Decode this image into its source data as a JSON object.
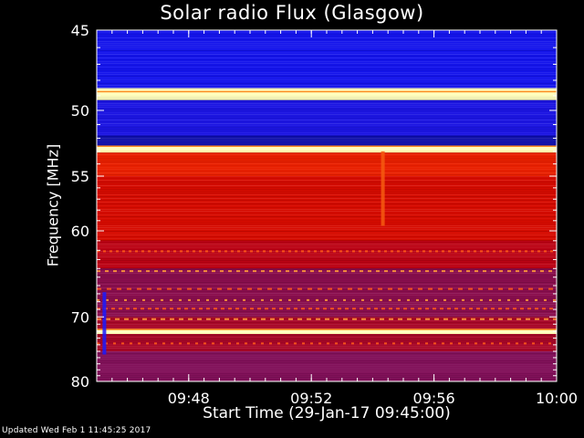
{
  "chart_data": {
    "type": "heatmap",
    "title": "Solar radio Flux (Glasgow)",
    "xlabel": "Start Time (29-Jan-17 09:45:00)",
    "ylabel": "Frequency [MHz]",
    "x_unit": "time (HH:MM)",
    "xlim": [
      "09:45",
      "10:00"
    ],
    "x_ticks": [
      "09:48",
      "09:52",
      "09:56",
      "10:00"
    ],
    "ylim": [
      45,
      80
    ],
    "y_inverted": true,
    "y_ticks": [
      45,
      50,
      55,
      60,
      70,
      80
    ],
    "y_scale": "reciprocal",
    "colormap": "blue-red-yellow",
    "frequency_bands": [
      {
        "from": 45.0,
        "to": 48.5,
        "level": 0.12
      },
      {
        "from": 48.5,
        "to": 49.3,
        "level": 1.0
      },
      {
        "from": 49.3,
        "to": 51.8,
        "level": 0.14
      },
      {
        "from": 51.8,
        "to": 52.6,
        "level": 0.05
      },
      {
        "from": 52.6,
        "to": 53.1,
        "level": 0.98
      },
      {
        "from": 53.1,
        "to": 55.0,
        "level": 0.72
      },
      {
        "from": 55.0,
        "to": 61.0,
        "level": 0.64
      },
      {
        "from": 61.0,
        "to": 64.0,
        "level": 0.55
      },
      {
        "from": 64.0,
        "to": 70.0,
        "level": 0.42
      },
      {
        "from": 70.0,
        "to": 71.8,
        "level": 0.5
      },
      {
        "from": 71.8,
        "to": 72.4,
        "level": 0.97
      },
      {
        "from": 72.4,
        "to": 75.0,
        "level": 0.5
      },
      {
        "from": 75.0,
        "to": 80.0,
        "level": 0.4
      }
    ],
    "bright_lines_mhz": [
      48.9,
      52.8,
      72.1
    ],
    "interference_rows_mhz": [
      62.1,
      64.3,
      66.4,
      67.8,
      68.9,
      70.3,
      73.8
    ],
    "events": [
      {
        "time": "09:45:15",
        "from": 66.8,
        "to": 75.5,
        "note": "vertical burst"
      },
      {
        "time": "09:54:20",
        "from": 53.0,
        "to": 59.5,
        "note": "vertical burst"
      }
    ]
  },
  "footer": "Updated Wed Feb  1 11:45:25 2017",
  "colors": {
    "background": "#000000",
    "text": "#ffffff",
    "low": "#1a1aff",
    "mid": "#cc0000",
    "high": "#ffff99"
  }
}
